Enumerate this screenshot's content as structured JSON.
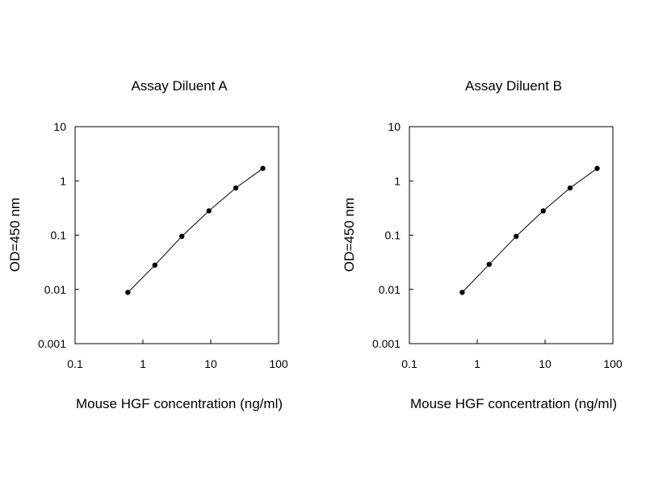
{
  "chart_data": [
    {
      "type": "line",
      "title": "Assay Diluent A",
      "xlabel": "Mouse HGF concentration (ng/ml)",
      "ylabel": "OD=450 nm",
      "x_scale": "log",
      "y_scale": "log",
      "xlim": [
        0.1,
        100
      ],
      "ylim": [
        0.001,
        10
      ],
      "x_ticks": [
        "0.1",
        "1",
        "10",
        "100"
      ],
      "y_ticks": [
        "0.001",
        "0.01",
        "0.1",
        "1",
        "10"
      ],
      "grid": false,
      "legend": "none",
      "series": [
        {
          "x": [
            0.6,
            1.5,
            3.75,
            9.4,
            23.4,
            58.6
          ],
          "y": [
            0.0088,
            0.028,
            0.095,
            0.28,
            0.74,
            1.7
          ]
        }
      ]
    },
    {
      "type": "line",
      "title": "Assay Diluent B",
      "xlabel": "Mouse HGF concentration (ng/ml)",
      "ylabel": "OD=450 nm",
      "x_scale": "log",
      "y_scale": "log",
      "xlim": [
        0.1,
        100
      ],
      "ylim": [
        0.001,
        10
      ],
      "x_ticks": [
        "0.1",
        "1",
        "10",
        "100"
      ],
      "y_ticks": [
        "0.001",
        "0.01",
        "0.1",
        "1",
        "10"
      ],
      "grid": false,
      "legend": "none",
      "series": [
        {
          "x": [
            0.6,
            1.5,
            3.75,
            9.4,
            23.4,
            58.6
          ],
          "y": [
            0.0088,
            0.029,
            0.095,
            0.28,
            0.74,
            1.7
          ]
        }
      ]
    }
  ]
}
